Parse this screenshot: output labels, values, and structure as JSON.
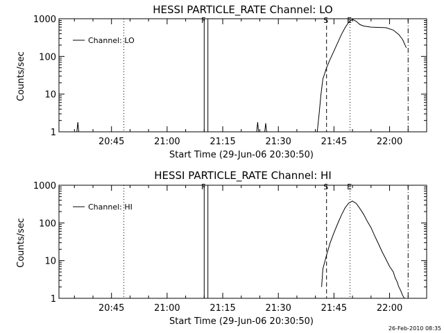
{
  "footer": {
    "timestamp": "26-Feb-2010 08:35"
  },
  "chart_data": [
    {
      "type": "line",
      "title": "HESSI PARTICLE_RATE Channel: LO",
      "xlabel": "Start Time (29-Jun-06 20:30:50)",
      "ylabel": "Counts/sec",
      "yscale": "log",
      "ylim": [
        1,
        1000
      ],
      "xlim": [
        "20:30:50",
        "22:10:00"
      ],
      "x_ticks": [
        "20:45",
        "21:00",
        "21:15",
        "21:30",
        "21:45",
        "22:00"
      ],
      "y_ticks": [
        "1",
        "10",
        "100",
        "1000"
      ],
      "legend": {
        "entries": [
          "Channel: LO"
        ],
        "placement": "top-left"
      },
      "grid": false,
      "markers": [
        {
          "label": "",
          "time": "20:48:20",
          "style": "dotted"
        },
        {
          "label": "F",
          "time": "21:10:00",
          "style": "solid"
        },
        {
          "label": "",
          "time": "21:11:00",
          "style": "solid"
        },
        {
          "label": "S",
          "time": "21:43:00",
          "style": "dashed"
        },
        {
          "label": "E",
          "time": "21:49:20",
          "style": "dotted"
        },
        {
          "label": "",
          "time": "22:05:00",
          "style": "dash-dot"
        }
      ],
      "series": [
        {
          "values": [
            [
              "20:35:40",
              1
            ],
            [
              "20:35:55",
              1.8
            ],
            [
              "20:36:10",
              1
            ],
            [
              "21:24:10",
              1
            ],
            [
              "21:24:25",
              1.8
            ],
            [
              "21:24:40",
              1
            ],
            [
              "21:26:20",
              1
            ],
            [
              "21:26:35",
              1.7
            ],
            [
              "21:26:50",
              1
            ],
            [
              "21:40:30",
              1
            ],
            [
              "21:41:00",
              3
            ],
            [
              "21:41:30",
              10
            ],
            [
              "21:42:00",
              25
            ],
            [
              "21:43:00",
              50
            ],
            [
              "21:44:00",
              85
            ],
            [
              "21:45:00",
              140
            ],
            [
              "21:46:00",
              230
            ],
            [
              "21:47:00",
              380
            ],
            [
              "21:48:00",
              580
            ],
            [
              "21:49:00",
              820
            ],
            [
              "21:50:00",
              960
            ],
            [
              "21:51:00",
              850
            ],
            [
              "21:52:00",
              700
            ],
            [
              "21:53:00",
              640
            ],
            [
              "21:55:00",
              600
            ],
            [
              "21:57:00",
              590
            ],
            [
              "21:59:00",
              580
            ],
            [
              "22:01:00",
              500
            ],
            [
              "22:02:30",
              380
            ],
            [
              "22:03:30",
              280
            ],
            [
              "22:04:30",
              170
            ]
          ]
        }
      ]
    },
    {
      "type": "line",
      "title": "HESSI PARTICLE_RATE Channel: HI",
      "xlabel": "Start Time (29-Jun-06 20:30:50)",
      "ylabel": "Counts/sec",
      "yscale": "log",
      "ylim": [
        1,
        1000
      ],
      "xlim": [
        "20:30:50",
        "22:10:00"
      ],
      "x_ticks": [
        "20:45",
        "21:00",
        "21:15",
        "21:30",
        "21:45",
        "22:00"
      ],
      "y_ticks": [
        "1",
        "10",
        "100",
        "1000"
      ],
      "legend": {
        "entries": [
          "Channel: HI"
        ],
        "placement": "top-left"
      },
      "grid": false,
      "markers": [
        {
          "label": "",
          "time": "20:48:20",
          "style": "dotted"
        },
        {
          "label": "F",
          "time": "21:10:00",
          "style": "solid"
        },
        {
          "label": "",
          "time": "21:11:00",
          "style": "solid"
        },
        {
          "label": "S",
          "time": "21:43:00",
          "style": "dashed"
        },
        {
          "label": "E",
          "time": "21:49:20",
          "style": "dotted"
        },
        {
          "label": "",
          "time": "22:05:00",
          "style": "dash-dot"
        }
      ],
      "series": [
        {
          "values": [
            [
              "21:41:40",
              2
            ],
            [
              "21:42:00",
              6
            ],
            [
              "21:43:00",
              14
            ],
            [
              "21:44:00",
              30
            ],
            [
              "21:45:00",
              55
            ],
            [
              "21:46:00",
              95
            ],
            [
              "21:47:00",
              160
            ],
            [
              "21:48:00",
              250
            ],
            [
              "21:49:00",
              340
            ],
            [
              "21:50:00",
              380
            ],
            [
              "21:51:00",
              330
            ],
            [
              "21:52:00",
              240
            ],
            [
              "21:53:00",
              170
            ],
            [
              "21:54:00",
              110
            ],
            [
              "21:55:00",
              75
            ],
            [
              "21:56:00",
              45
            ],
            [
              "21:57:00",
              28
            ],
            [
              "21:58:00",
              17
            ],
            [
              "21:59:00",
              11
            ],
            [
              "22:00:00",
              7
            ],
            [
              "22:01:00",
              5
            ],
            [
              "22:01:30",
              3.5
            ],
            [
              "22:02:00",
              2.8
            ],
            [
              "22:02:30",
              2
            ],
            [
              "22:03:00",
              1.6
            ],
            [
              "22:03:30",
              1.2
            ],
            [
              "22:04:00",
              1
            ]
          ]
        }
      ]
    }
  ]
}
